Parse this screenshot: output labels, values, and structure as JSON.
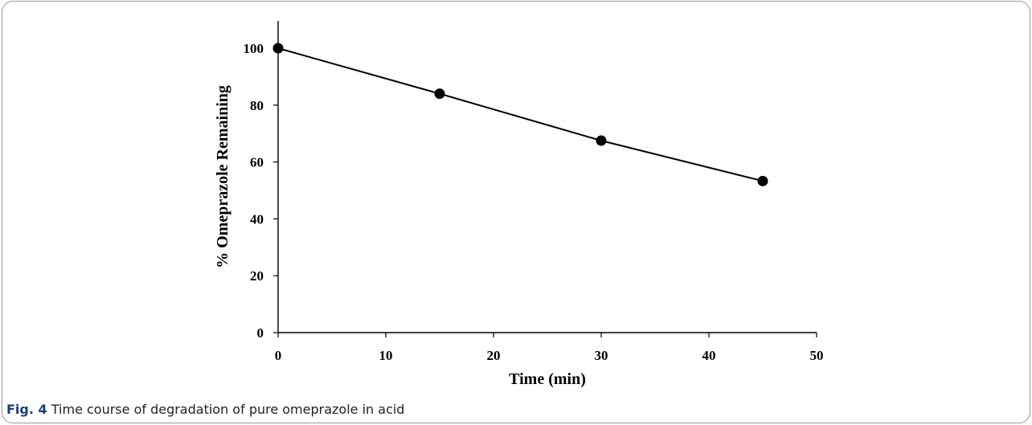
{
  "figure": {
    "caption_label": "Fig. 4",
    "caption_text": "Time course of degradation of pure omeprazole in acid"
  },
  "chart_data": {
    "type": "line",
    "title": "",
    "xlabel": "Time (min)",
    "ylabel": "% Omeprazole Remaining",
    "xlim": [
      0,
      50
    ],
    "ylim": [
      0,
      100
    ],
    "x_ticks": [
      0,
      10,
      20,
      30,
      40,
      50
    ],
    "y_ticks": [
      0,
      20,
      40,
      60,
      80,
      100
    ],
    "grid": false,
    "marker": "filled-circle",
    "line_color": "#000000",
    "series": [
      {
        "x": [
          0,
          15,
          30,
          45
        ],
        "y": [
          100,
          84,
          67.5,
          53.3
        ]
      }
    ]
  }
}
